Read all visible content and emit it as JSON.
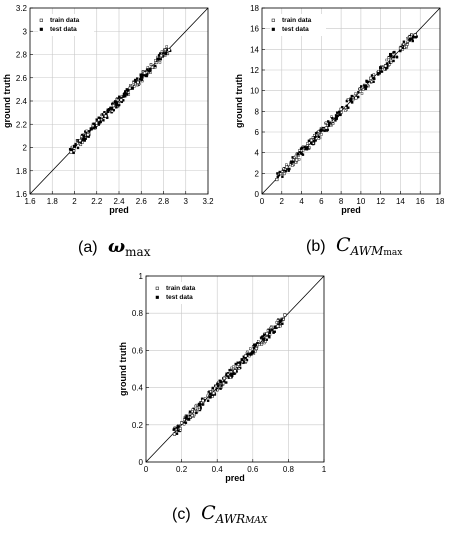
{
  "chart_data": [
    {
      "type": "scatter",
      "xlabel": "pred",
      "ylabel": "ground truth",
      "xlim": [
        1.6,
        3.2
      ],
      "ylim": [
        1.6,
        3.2
      ],
      "xticks": [
        "1.6",
        "1.8",
        "2",
        "2.2",
        "2.4",
        "2.6",
        "2.8",
        "3",
        "3.2"
      ],
      "yticks": [
        "1.6",
        "1.8",
        "2",
        "2.2",
        "2.4",
        "2.6",
        "2.8",
        "3",
        "3.2"
      ],
      "grid": true,
      "legend": "top-left",
      "reference_line": "y = x",
      "series": [
        {
          "name": "train data",
          "marker": "open-square",
          "x": [
            1.97,
            2.05,
            2.12,
            2.2,
            2.28,
            2.35,
            2.42,
            2.5,
            2.57,
            2.63,
            2.7,
            2.78,
            2.85
          ],
          "y": [
            1.96,
            2.06,
            2.11,
            2.21,
            2.27,
            2.36,
            2.41,
            2.51,
            2.56,
            2.64,
            2.69,
            2.79,
            2.84
          ]
        },
        {
          "name": "test data",
          "marker": "filled-square",
          "x": [
            2.0,
            2.08,
            2.15,
            2.22,
            2.3,
            2.38,
            2.45,
            2.52,
            2.6,
            2.68,
            2.75,
            2.82
          ],
          "y": [
            2.01,
            2.07,
            2.16,
            2.21,
            2.31,
            2.37,
            2.46,
            2.51,
            2.61,
            2.67,
            2.76,
            2.81
          ]
        }
      ]
    },
    {
      "type": "scatter",
      "xlabel": "pred",
      "ylabel": "ground truth",
      "xlim": [
        0,
        18
      ],
      "ylim": [
        0,
        18
      ],
      "xticks": [
        "0",
        "2",
        "4",
        "6",
        "8",
        "10",
        "12",
        "14",
        "16",
        "18"
      ],
      "yticks": [
        "0",
        "2",
        "4",
        "6",
        "8",
        "10",
        "12",
        "14",
        "16",
        "18"
      ],
      "grid": true,
      "legend": "top-left",
      "reference_line": "y = x",
      "series": [
        {
          "name": "train data",
          "marker": "open-square",
          "x": [
            1.5,
            2.5,
            3.5,
            5,
            6.5,
            8,
            9.5,
            11,
            12.5,
            14,
            15.5
          ],
          "y": [
            1.4,
            2.6,
            3.3,
            5.2,
            6.4,
            8.2,
            9.3,
            11.2,
            12.4,
            14.1,
            15.4
          ]
        },
        {
          "name": "test data",
          "marker": "filled-square",
          "x": [
            3,
            4.5,
            6,
            7.5,
            9,
            10.5,
            12,
            13
          ],
          "y": [
            3.1,
            4.4,
            6.2,
            7.3,
            9.2,
            10.4,
            12.2,
            13.5
          ]
        }
      ]
    },
    {
      "type": "scatter",
      "xlabel": "pred",
      "ylabel": "ground truth",
      "xlim": [
        0,
        1
      ],
      "ylim": [
        0,
        1
      ],
      "xticks": [
        "0",
        "0.2",
        "0.4",
        "0.6",
        "0.8",
        "1"
      ],
      "yticks": [
        "0",
        "0.2",
        "0.4",
        "0.6",
        "0.8",
        "1"
      ],
      "grid": true,
      "legend": "top-left",
      "reference_line": "y = x",
      "series": [
        {
          "name": "train data",
          "marker": "open-square",
          "x": [
            0.16,
            0.2,
            0.26,
            0.32,
            0.38,
            0.44,
            0.5,
            0.56,
            0.62,
            0.68,
            0.74,
            0.78
          ],
          "y": [
            0.15,
            0.21,
            0.25,
            0.33,
            0.37,
            0.45,
            0.49,
            0.57,
            0.61,
            0.69,
            0.73,
            0.79
          ]
        },
        {
          "name": "test data",
          "marker": "filled-square",
          "x": [
            0.18,
            0.24,
            0.3,
            0.36,
            0.42,
            0.48,
            0.54,
            0.6,
            0.66
          ],
          "y": [
            0.19,
            0.23,
            0.31,
            0.35,
            0.43,
            0.47,
            0.55,
            0.59,
            0.66
          ]
        }
      ]
    }
  ],
  "captions": [
    {
      "tag": "(a)",
      "symbol": "ω",
      "subscript": "max"
    },
    {
      "tag": "(b)",
      "symbol": "C",
      "subscript_italic": "AWM",
      "subscript_small": "max"
    },
    {
      "tag": "(c)",
      "symbol": "C",
      "subscript_italic": "AWR",
      "subscript_small": "MAX"
    }
  ]
}
